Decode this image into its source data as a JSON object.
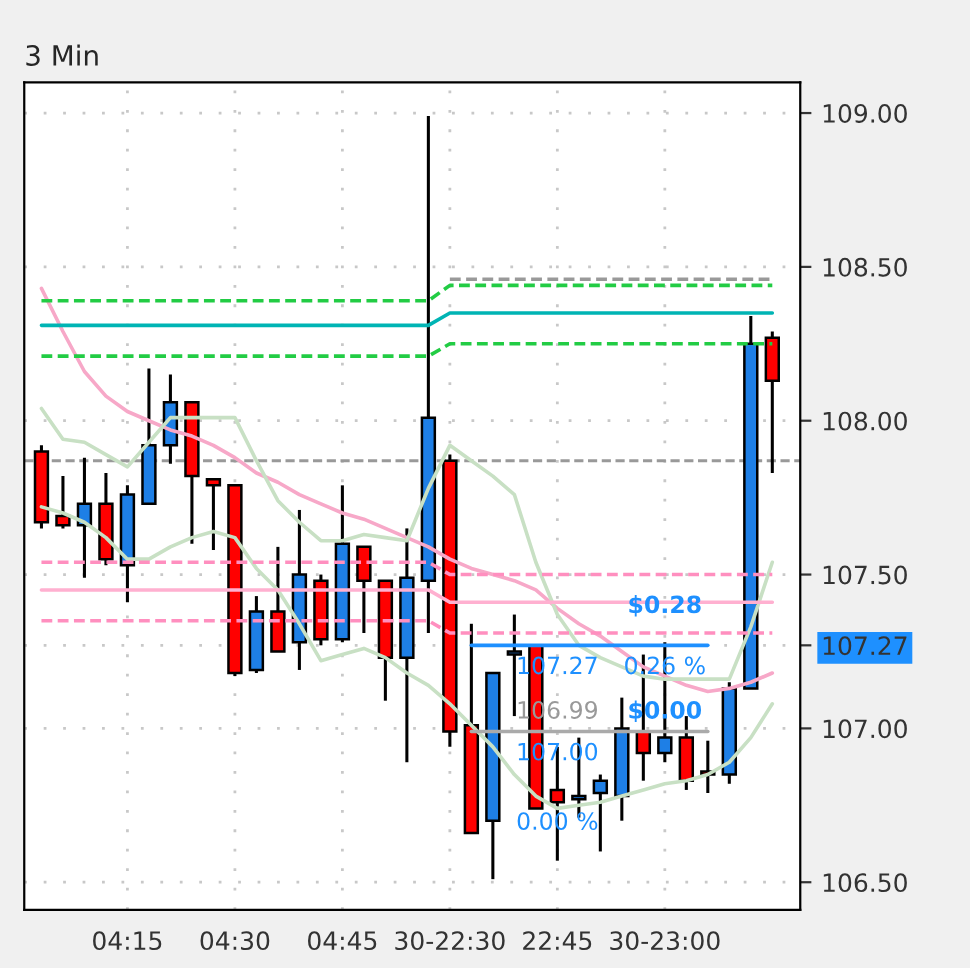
{
  "chart_data": {
    "type": "candlestick",
    "title": "3 Min",
    "categories": [
      null,
      null,
      null,
      null,
      "04:15",
      null,
      null,
      null,
      null,
      "04:30",
      null,
      null,
      null,
      null,
      "04:45",
      null,
      null,
      null,
      null,
      "30-22:30",
      null,
      null,
      null,
      null,
      "22:45",
      null,
      null,
      null,
      null,
      "30-23:00",
      null,
      null,
      null,
      null,
      null
    ],
    "ohlc": [
      [
        107.9,
        107.92,
        107.65,
        107.67
      ],
      [
        107.69,
        107.82,
        107.65,
        107.66
      ],
      [
        107.66,
        107.88,
        107.49,
        107.73
      ],
      [
        107.73,
        107.83,
        107.53,
        107.55
      ],
      [
        107.53,
        107.79,
        107.41,
        107.76
      ],
      [
        107.73,
        108.17,
        107.73,
        107.92
      ],
      [
        107.92,
        108.15,
        107.86,
        108.06
      ],
      [
        108.06,
        108.06,
        107.6,
        107.82
      ],
      [
        107.81,
        107.81,
        107.58,
        107.79
      ],
      [
        107.79,
        107.79,
        107.17,
        107.18
      ],
      [
        107.19,
        107.43,
        107.18,
        107.38
      ],
      [
        107.38,
        107.59,
        107.25,
        107.25
      ],
      [
        107.28,
        107.71,
        107.19,
        107.5
      ],
      [
        107.48,
        107.5,
        107.27,
        107.29
      ],
      [
        107.29,
        107.79,
        107.28,
        107.6
      ],
      [
        107.59,
        107.59,
        107.31,
        107.48
      ],
      [
        107.48,
        107.48,
        107.09,
        107.23
      ],
      [
        107.23,
        107.65,
        106.89,
        107.49
      ],
      [
        107.48,
        108.99,
        107.31,
        108.01
      ],
      [
        107.87,
        107.89,
        106.94,
        106.99
      ],
      [
        107.01,
        107.34,
        106.66,
        106.66
      ],
      [
        106.7,
        107.18,
        106.51,
        107.18
      ],
      [
        107.24,
        107.37,
        107.04,
        107.25
      ],
      [
        107.27,
        107.27,
        106.74,
        106.74
      ],
      [
        106.8,
        106.94,
        106.57,
        106.76
      ],
      [
        106.77,
        106.97,
        106.71,
        106.78
      ],
      [
        106.79,
        106.85,
        106.6,
        106.83
      ],
      [
        106.78,
        107.1,
        106.7,
        107.0
      ],
      [
        106.99,
        107.24,
        106.83,
        106.92
      ],
      [
        106.92,
        107.28,
        106.89,
        106.97
      ],
      [
        106.97,
        107.04,
        106.8,
        106.83
      ],
      [
        106.86,
        106.96,
        106.79,
        106.85
      ],
      [
        106.85,
        107.15,
        106.82,
        107.13
      ],
      [
        107.13,
        108.34,
        107.13,
        108.25
      ],
      [
        108.27,
        108.29,
        107.83,
        108.13
      ]
    ],
    "colors": [
      "#ff0000",
      "#ff0000",
      "#1e7fe6",
      "#ff0000",
      "#1e7fe6",
      "#1e7fe6",
      "#1e7fe6",
      "#ff0000",
      "#ff0000",
      "#ff0000",
      "#1e7fe6",
      "#ff0000",
      "#1e7fe6",
      "#ff0000",
      "#1e7fe6",
      "#ff0000",
      "#ff0000",
      "#1e7fe6",
      "#1e7fe6",
      "#ff0000",
      "#ff0000",
      "#1e7fe6",
      "#1e7fe6",
      "#ff0000",
      "#ff0000",
      "#1e7fe6",
      "#1e7fe6",
      "#1e7fe6",
      "#ff0000",
      "#1e7fe6",
      "#ff0000",
      "#ff0000",
      "#1e7fe6",
      "#1e7fe6",
      "#ff0000"
    ],
    "series": [
      {
        "type": "line",
        "color": "#f7a8c8",
        "line_style": "solid",
        "values": [
          108.43,
          108.29,
          108.16,
          108.08,
          108.03,
          108.0,
          107.97,
          107.95,
          107.92,
          107.88,
          107.83,
          107.8,
          107.76,
          107.73,
          107.7,
          107.68,
          107.65,
          107.62,
          107.59,
          107.55,
          107.52,
          107.5,
          107.48,
          107.45,
          107.39,
          107.34,
          107.3,
          107.25,
          107.2,
          107.17,
          107.14,
          107.12,
          107.13,
          107.15,
          107.18
        ]
      },
      {
        "type": "line",
        "color": "#c8e0c4",
        "line_style": "solid",
        "values": [
          108.04,
          107.94,
          107.93,
          107.89,
          107.85,
          107.93,
          108.01,
          108.01,
          108.01,
          108.01,
          107.87,
          107.74,
          107.67,
          107.61,
          107.61,
          107.63,
          107.62,
          107.61,
          107.78,
          107.92,
          107.87,
          107.82,
          107.76,
          107.54,
          107.37,
          107.27,
          107.23,
          107.2,
          107.17,
          107.16,
          107.16,
          107.16,
          107.16,
          107.33,
          107.54
        ]
      },
      {
        "type": "line",
        "color": "#c8e0c4",
        "line_style": "solid",
        "values": [
          107.72,
          107.7,
          107.67,
          107.62,
          107.55,
          107.55,
          107.59,
          107.62,
          107.64,
          107.62,
          107.52,
          107.45,
          107.34,
          107.22,
          107.24,
          107.26,
          107.23,
          107.18,
          107.14,
          107.08,
          107.01,
          106.94,
          106.85,
          106.78,
          106.74,
          106.75,
          106.76,
          106.78,
          106.8,
          106.82,
          106.83,
          106.85,
          106.89,
          106.97,
          107.08
        ]
      },
      {
        "type": "line",
        "color": "#00b4b4",
        "line_style": "solid",
        "values": [
          108.31,
          108.31,
          108.31,
          108.31,
          108.31,
          108.31,
          108.31,
          108.31,
          108.31,
          108.31,
          108.31,
          108.31,
          108.31,
          108.31,
          108.31,
          108.31,
          108.31,
          108.31,
          108.31,
          108.35,
          108.35,
          108.35,
          108.35,
          108.35,
          108.35,
          108.35,
          108.35,
          108.35,
          108.35,
          108.35,
          108.35,
          108.35,
          108.35,
          108.35,
          108.35
        ]
      },
      {
        "type": "line",
        "color": "#22cc44",
        "line_style": "dashed",
        "values": [
          108.39,
          108.39,
          108.39,
          108.39,
          108.39,
          108.39,
          108.39,
          108.39,
          108.39,
          108.39,
          108.39,
          108.39,
          108.39,
          108.39,
          108.39,
          108.39,
          108.39,
          108.39,
          108.39,
          108.44,
          108.44,
          108.44,
          108.44,
          108.44,
          108.44,
          108.44,
          108.44,
          108.44,
          108.44,
          108.44,
          108.44,
          108.44,
          108.44,
          108.44,
          108.44
        ]
      },
      {
        "type": "line",
        "color": "#22cc44",
        "line_style": "dashed",
        "values": [
          108.21,
          108.21,
          108.21,
          108.21,
          108.21,
          108.21,
          108.21,
          108.21,
          108.21,
          108.21,
          108.21,
          108.21,
          108.21,
          108.21,
          108.21,
          108.21,
          108.21,
          108.21,
          108.21,
          108.25,
          108.25,
          108.25,
          108.25,
          108.25,
          108.25,
          108.25,
          108.25,
          108.25,
          108.25,
          108.25,
          108.25,
          108.25,
          108.25,
          108.25,
          108.25
        ]
      },
      {
        "type": "line",
        "color": "#999999",
        "line_style": "dashed",
        "values": [
          null,
          null,
          null,
          null,
          null,
          null,
          null,
          null,
          null,
          null,
          null,
          null,
          null,
          null,
          null,
          null,
          null,
          null,
          null,
          108.46,
          108.46,
          108.46,
          108.46,
          108.46,
          108.46,
          108.46,
          108.46,
          108.46,
          108.46,
          108.46,
          108.46,
          108.46,
          108.46,
          108.46,
          108.46
        ]
      },
      {
        "type": "line",
        "color": "#ff8fbf",
        "line_style": "dashed",
        "values": [
          107.54,
          107.54,
          107.54,
          107.54,
          107.54,
          107.54,
          107.54,
          107.54,
          107.54,
          107.54,
          107.54,
          107.54,
          107.54,
          107.54,
          107.54,
          107.54,
          107.54,
          107.54,
          107.54,
          107.5,
          107.5,
          107.5,
          107.5,
          107.5,
          107.5,
          107.5,
          107.5,
          107.5,
          107.5,
          107.5,
          107.5,
          107.5,
          107.5,
          107.5,
          107.5
        ]
      },
      {
        "type": "line",
        "color": "#ffb0d0",
        "line_style": "solid",
        "values": [
          107.45,
          107.45,
          107.45,
          107.45,
          107.45,
          107.45,
          107.45,
          107.45,
          107.45,
          107.45,
          107.45,
          107.45,
          107.45,
          107.45,
          107.45,
          107.45,
          107.45,
          107.45,
          107.45,
          107.41,
          107.41,
          107.41,
          107.41,
          107.41,
          107.41,
          107.41,
          107.41,
          107.41,
          107.41,
          107.41,
          107.41,
          107.41,
          107.41,
          107.41,
          107.41
        ]
      },
      {
        "type": "line",
        "color": "#ff8fbf",
        "line_style": "dashed",
        "values": [
          107.35,
          107.35,
          107.35,
          107.35,
          107.35,
          107.35,
          107.35,
          107.35,
          107.35,
          107.35,
          107.35,
          107.35,
          107.35,
          107.35,
          107.35,
          107.35,
          107.35,
          107.35,
          107.35,
          107.31,
          107.31,
          107.31,
          107.31,
          107.31,
          107.31,
          107.31,
          107.31,
          107.31,
          107.31,
          107.31,
          107.31,
          107.31,
          107.31,
          107.31,
          107.31
        ]
      },
      {
        "type": "line",
        "color": "#1e90ff",
        "line_style": "solid",
        "values": [
          null,
          null,
          null,
          null,
          null,
          null,
          null,
          null,
          null,
          null,
          null,
          null,
          null,
          null,
          null,
          null,
          null,
          null,
          null,
          null,
          107.27,
          107.27,
          107.27,
          107.27,
          107.27,
          107.27,
          107.27,
          107.27,
          107.27,
          107.27,
          107.27,
          107.27,
          null,
          null,
          null
        ]
      },
      {
        "type": "line",
        "color": "#aaaaaa",
        "line_style": "solid",
        "values": [
          null,
          null,
          null,
          null,
          null,
          null,
          null,
          null,
          null,
          null,
          null,
          null,
          null,
          null,
          null,
          null,
          null,
          null,
          null,
          null,
          106.99,
          106.99,
          106.99,
          106.99,
          106.99,
          106.99,
          106.99,
          106.99,
          106.99,
          106.99,
          106.99,
          106.99,
          null,
          null,
          null
        ]
      }
    ],
    "ref_lines": [
      {
        "axis": "y",
        "value": 107.87,
        "color": "#999999",
        "line_style": "dashed"
      }
    ],
    "annotations": [
      {
        "text": "$0.28",
        "x": "30-23:00",
        "y": 107.27
      },
      {
        "text": "0.26 %",
        "x": "30-23:00",
        "y": 107.27
      },
      {
        "text": "107.27",
        "x": "22:45",
        "y": 107.27
      },
      {
        "text": "106.99",
        "x": "22:45",
        "y": 106.99
      },
      {
        "text": "$0.00",
        "x": "30-23:00",
        "y": 106.99
      },
      {
        "text": "107.00",
        "x": "22:45",
        "y": 106.99
      },
      "0.00 %"
    ],
    "ylim": [
      106.41,
      109.1
    ],
    "yticks": [
      {
        "value": 106.5,
        "label": "106.50"
      },
      {
        "value": 107.0,
        "label": "107.00"
      },
      {
        "value": 107.27,
        "label": "107.27"
      },
      {
        "value": 107.5,
        "label": "107.50"
      },
      {
        "value": 108.0,
        "label": "108.00"
      },
      {
        "value": 108.5,
        "label": "108.50"
      },
      {
        "value": 109.0,
        "label": "109.00"
      }
    ],
    "grid": true
  }
}
